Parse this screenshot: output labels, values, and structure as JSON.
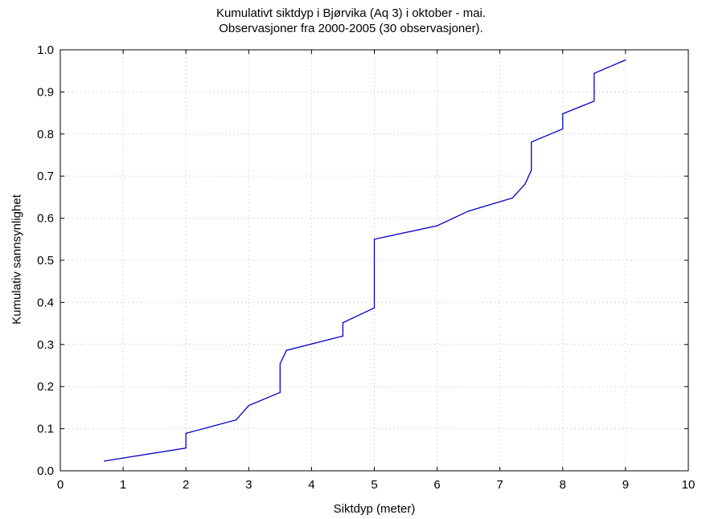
{
  "chart_data": {
    "type": "line",
    "title_lines": [
      "Kumulativt siktdyp i Bjørvika (Aq 3) i oktober - mai.",
      "Observasjoner fra 2000-2005 (30 observasjoner)."
    ],
    "xlabel": "Siktdyp (meter)",
    "ylabel": "Kumulativ sannsynlighet",
    "xlim": [
      0,
      10
    ],
    "ylim": [
      0,
      1.0
    ],
    "xticks": [
      "0",
      "1",
      "2",
      "3",
      "4",
      "5",
      "6",
      "7",
      "8",
      "9",
      "10"
    ],
    "yticks": [
      "0.0",
      "0.1",
      "0.2",
      "0.3",
      "0.4",
      "0.5",
      "0.6",
      "0.7",
      "0.8",
      "0.9",
      "1.0"
    ],
    "grid": true,
    "line_color": "#0000cc",
    "points": [
      [
        0.7,
        0.023
      ],
      [
        2.0,
        0.054
      ],
      [
        2.0,
        0.089
      ],
      [
        2.8,
        0.121
      ],
      [
        3.0,
        0.155
      ],
      [
        3.5,
        0.186
      ],
      [
        3.5,
        0.254
      ],
      [
        3.6,
        0.286
      ],
      [
        4.5,
        0.32
      ],
      [
        4.5,
        0.352
      ],
      [
        5.0,
        0.387
      ],
      [
        5.0,
        0.55
      ],
      [
        6.0,
        0.582
      ],
      [
        6.5,
        0.617
      ],
      [
        7.2,
        0.648
      ],
      [
        7.4,
        0.681
      ],
      [
        7.5,
        0.714
      ],
      [
        7.5,
        0.781
      ],
      [
        8.0,
        0.812
      ],
      [
        8.0,
        0.848
      ],
      [
        8.5,
        0.878
      ],
      [
        8.5,
        0.944
      ],
      [
        9.0,
        0.976
      ]
    ]
  }
}
